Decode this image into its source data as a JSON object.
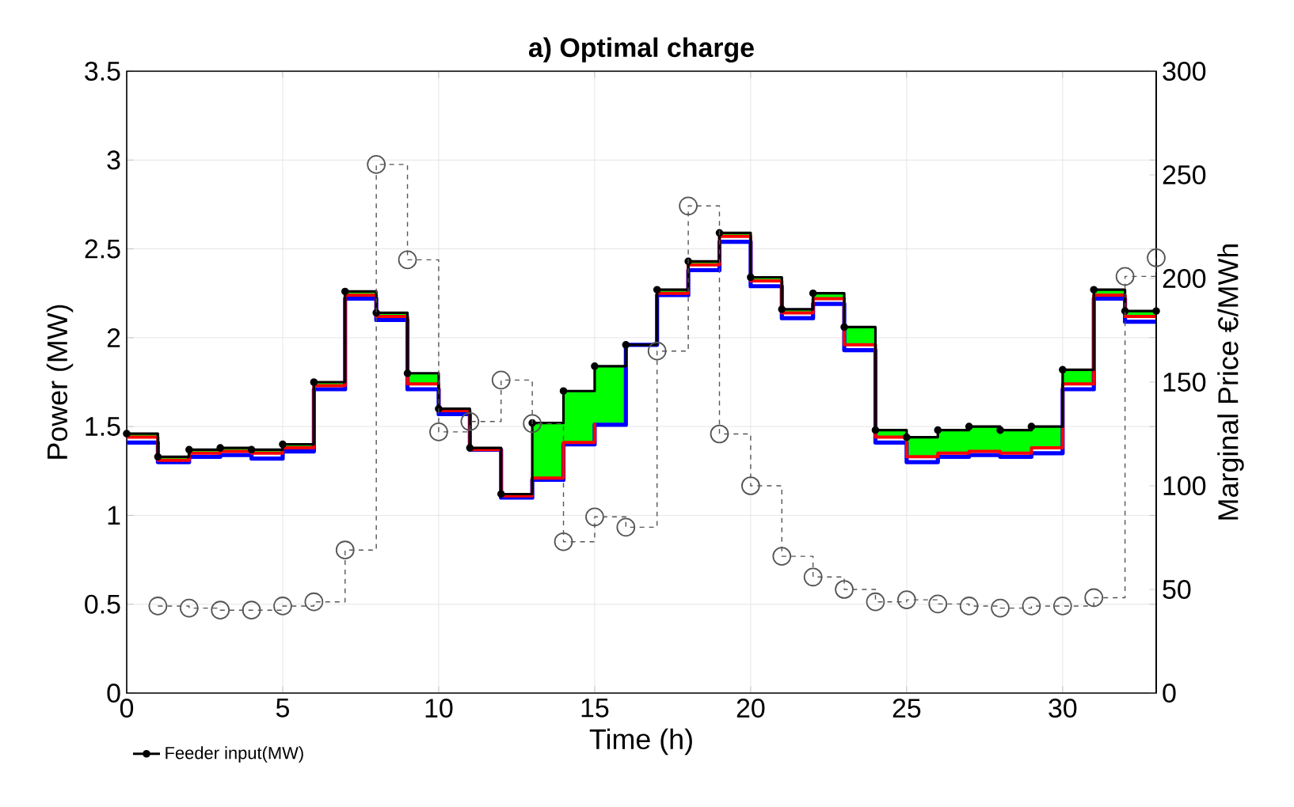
{
  "chart_data": {
    "type": "step",
    "title": "a) Optimal charge",
    "xlabel": "Time (h)",
    "ylabel": "Power (MW)",
    "y2label": "Marginal Price €/MWh",
    "x": [
      0,
      1,
      2,
      3,
      4,
      5,
      6,
      7,
      8,
      9,
      10,
      11,
      12,
      13,
      14,
      15,
      16,
      17,
      18,
      19,
      20,
      21,
      22,
      23,
      24,
      25,
      26,
      27,
      28,
      29,
      30,
      31,
      32,
      33
    ],
    "series": [
      {
        "type": "area",
        "color": "#00ff00",
        "values": [
          1.46,
          1.33,
          1.37,
          1.38,
          1.37,
          1.4,
          1.75,
          2.26,
          2.14,
          1.8,
          1.6,
          1.38,
          1.12,
          1.52,
          1.7,
          1.84,
          1.96,
          2.27,
          2.43,
          2.59,
          2.34,
          2.16,
          2.25,
          2.06,
          1.48,
          1.44,
          1.48,
          1.5,
          1.48,
          1.5,
          1.82,
          2.27,
          2.15,
          2.15
        ]
      },
      {
        "color": "#0000ff",
        "values": [
          1.41,
          1.3,
          1.33,
          1.34,
          1.32,
          1.36,
          1.71,
          2.22,
          2.1,
          1.71,
          1.57,
          1.37,
          1.1,
          1.2,
          1.4,
          1.51,
          1.96,
          2.24,
          2.38,
          2.54,
          2.29,
          2.11,
          2.19,
          1.93,
          1.41,
          1.3,
          1.33,
          1.34,
          1.33,
          1.35,
          1.71,
          2.22,
          2.09,
          2.09
        ]
      },
      {
        "color": "#ff0000",
        "values": [
          1.44,
          1.31,
          1.35,
          1.36,
          1.35,
          1.38,
          1.73,
          2.24,
          2.12,
          1.74,
          1.59,
          1.37,
          1.11,
          1.21,
          1.41,
          1.52,
          null,
          2.25,
          2.41,
          2.57,
          2.32,
          2.14,
          2.22,
          1.96,
          1.44,
          1.33,
          1.35,
          1.36,
          1.35,
          1.38,
          1.74,
          2.24,
          2.12,
          2.12
        ]
      },
      {
        "name": "Feeder input(MW)",
        "color": "#000000",
        "marker": "circle",
        "values": [
          1.46,
          1.33,
          1.37,
          1.38,
          1.37,
          1.4,
          1.75,
          2.26,
          2.14,
          1.8,
          1.6,
          1.38,
          1.12,
          1.52,
          1.7,
          1.84,
          1.96,
          2.27,
          2.43,
          2.59,
          2.34,
          2.16,
          2.25,
          2.06,
          1.48,
          1.44,
          1.48,
          1.5,
          1.48,
          1.5,
          1.82,
          2.27,
          2.15,
          2.15
        ]
      },
      {
        "axis": "y2",
        "color": "#555555",
        "marker": "circle",
        "line_style": "dashed",
        "x": [
          1,
          2,
          3,
          4,
          5,
          6,
          7,
          8,
          9,
          10,
          11,
          12,
          13,
          14,
          15,
          16,
          17,
          18,
          19,
          20,
          21,
          22,
          23,
          24,
          25,
          26,
          27,
          28,
          29,
          30,
          31,
          32,
          33
        ],
        "values": [
          42,
          41,
          40,
          40,
          42,
          44,
          69,
          255,
          209,
          126,
          131,
          151,
          130,
          73,
          85,
          80,
          165,
          235,
          125,
          100,
          66,
          56,
          50,
          44,
          45,
          43,
          42,
          41,
          42,
          42,
          46,
          201,
          210
        ]
      }
    ],
    "xlim": [
      0,
      33
    ],
    "xticks": [
      0,
      5,
      10,
      15,
      20,
      25,
      30
    ],
    "ylim": [
      0,
      3.5
    ],
    "yticks": [
      0,
      0.5,
      1,
      1.5,
      2,
      2.5,
      3,
      3.5
    ],
    "y2lim": [
      0,
      300
    ],
    "y2ticks": [
      0,
      50,
      100,
      150,
      200,
      250,
      300
    ],
    "grid": true,
    "legend": "bottom left"
  }
}
